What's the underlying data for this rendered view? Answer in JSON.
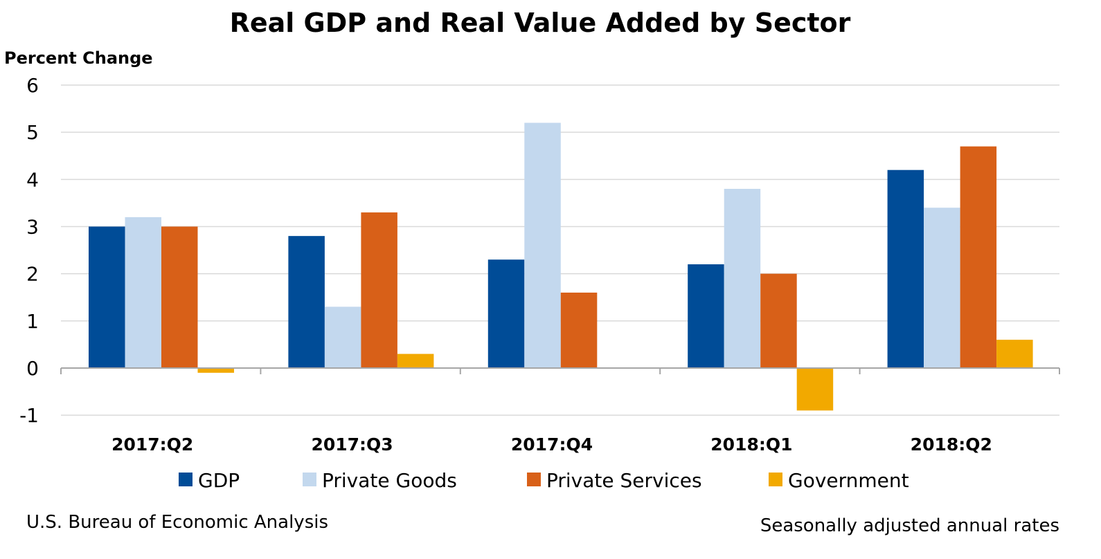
{
  "chart_data": {
    "type": "bar",
    "title": "Real GDP and Real Value Added by Sector",
    "ylabel": "Percent Change",
    "xlabel": "",
    "ylim": [
      -1,
      6
    ],
    "yticks": [
      -1,
      0,
      1,
      2,
      3,
      4,
      5,
      6
    ],
    "grid": true,
    "legend_placement": "bottom",
    "categories": [
      "2017:Q2",
      "2017:Q3",
      "2017:Q4",
      "2018:Q1",
      "2018:Q2"
    ],
    "series": [
      {
        "name": "GDP",
        "color": "#004C97",
        "values": [
          3.0,
          2.8,
          2.3,
          2.2,
          4.2
        ]
      },
      {
        "name": "Private Goods",
        "color": "#C3D8EE",
        "values": [
          3.2,
          1.3,
          5.2,
          3.8,
          3.4
        ]
      },
      {
        "name": "Private Services",
        "color": "#D86018",
        "values": [
          3.0,
          3.3,
          1.6,
          2.0,
          4.7
        ]
      },
      {
        "name": "Government",
        "color": "#F2A900",
        "values": [
          -0.1,
          0.3,
          0.0,
          -0.9,
          0.6
        ]
      }
    ],
    "source": "U.S. Bureau of Economic Analysis",
    "note": "Seasonally adjusted annual rates"
  }
}
